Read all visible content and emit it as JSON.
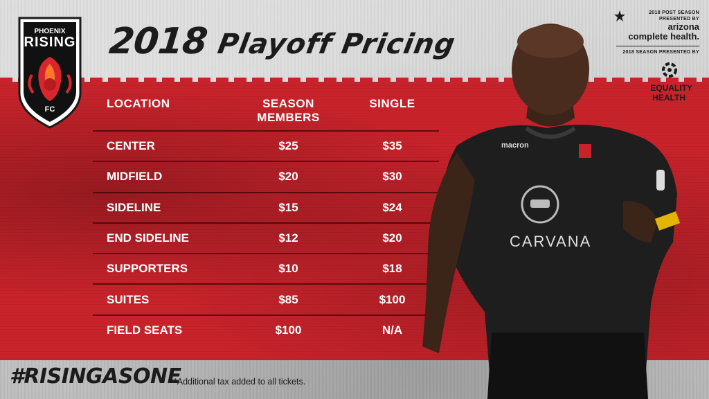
{
  "logo": {
    "line1": "PHOENIX",
    "line2": "RISING",
    "line3": "FC"
  },
  "title": {
    "year": "2018",
    "text": "Playoff Pricing"
  },
  "sponsors": {
    "post_season_label": "2018 POST SEASON PRESENTED BY",
    "post_season_name_1": "arizona",
    "post_season_name_2": "complete health.",
    "season_label": "2018 SEASON PRESENTED BY",
    "season_name_1": "EQUALITY",
    "season_name_2": "HEALTH"
  },
  "table": {
    "headers": {
      "location": "LOCATION",
      "season_1": "SEASON",
      "season_2": "MEMBERS",
      "single": "SINGLE"
    },
    "rows": [
      {
        "location": "CENTER",
        "season": "$25",
        "single": "$35"
      },
      {
        "location": "MIDFIELD",
        "season": "$20",
        "single": "$30"
      },
      {
        "location": "SIDELINE",
        "season": "$15",
        "single": "$24"
      },
      {
        "location": "END SIDELINE",
        "season": "$12",
        "single": "$20"
      },
      {
        "location": "SUPPORTERS",
        "season": "$10",
        "single": "$18"
      },
      {
        "location": "SUITES",
        "season": "$85",
        "single": "$100"
      },
      {
        "location": "FIELD SEATS",
        "season": "$100",
        "single": "N/A"
      }
    ]
  },
  "player": {
    "shirt_brand": "macron",
    "shirt_sponsor": "CARVANA"
  },
  "footer": {
    "hashtag": "#RISINGASONE",
    "disclaimer": "**Additional tax added to all tickets."
  },
  "colors": {
    "red": "#c8232b",
    "dark": "#1b1b1b"
  }
}
